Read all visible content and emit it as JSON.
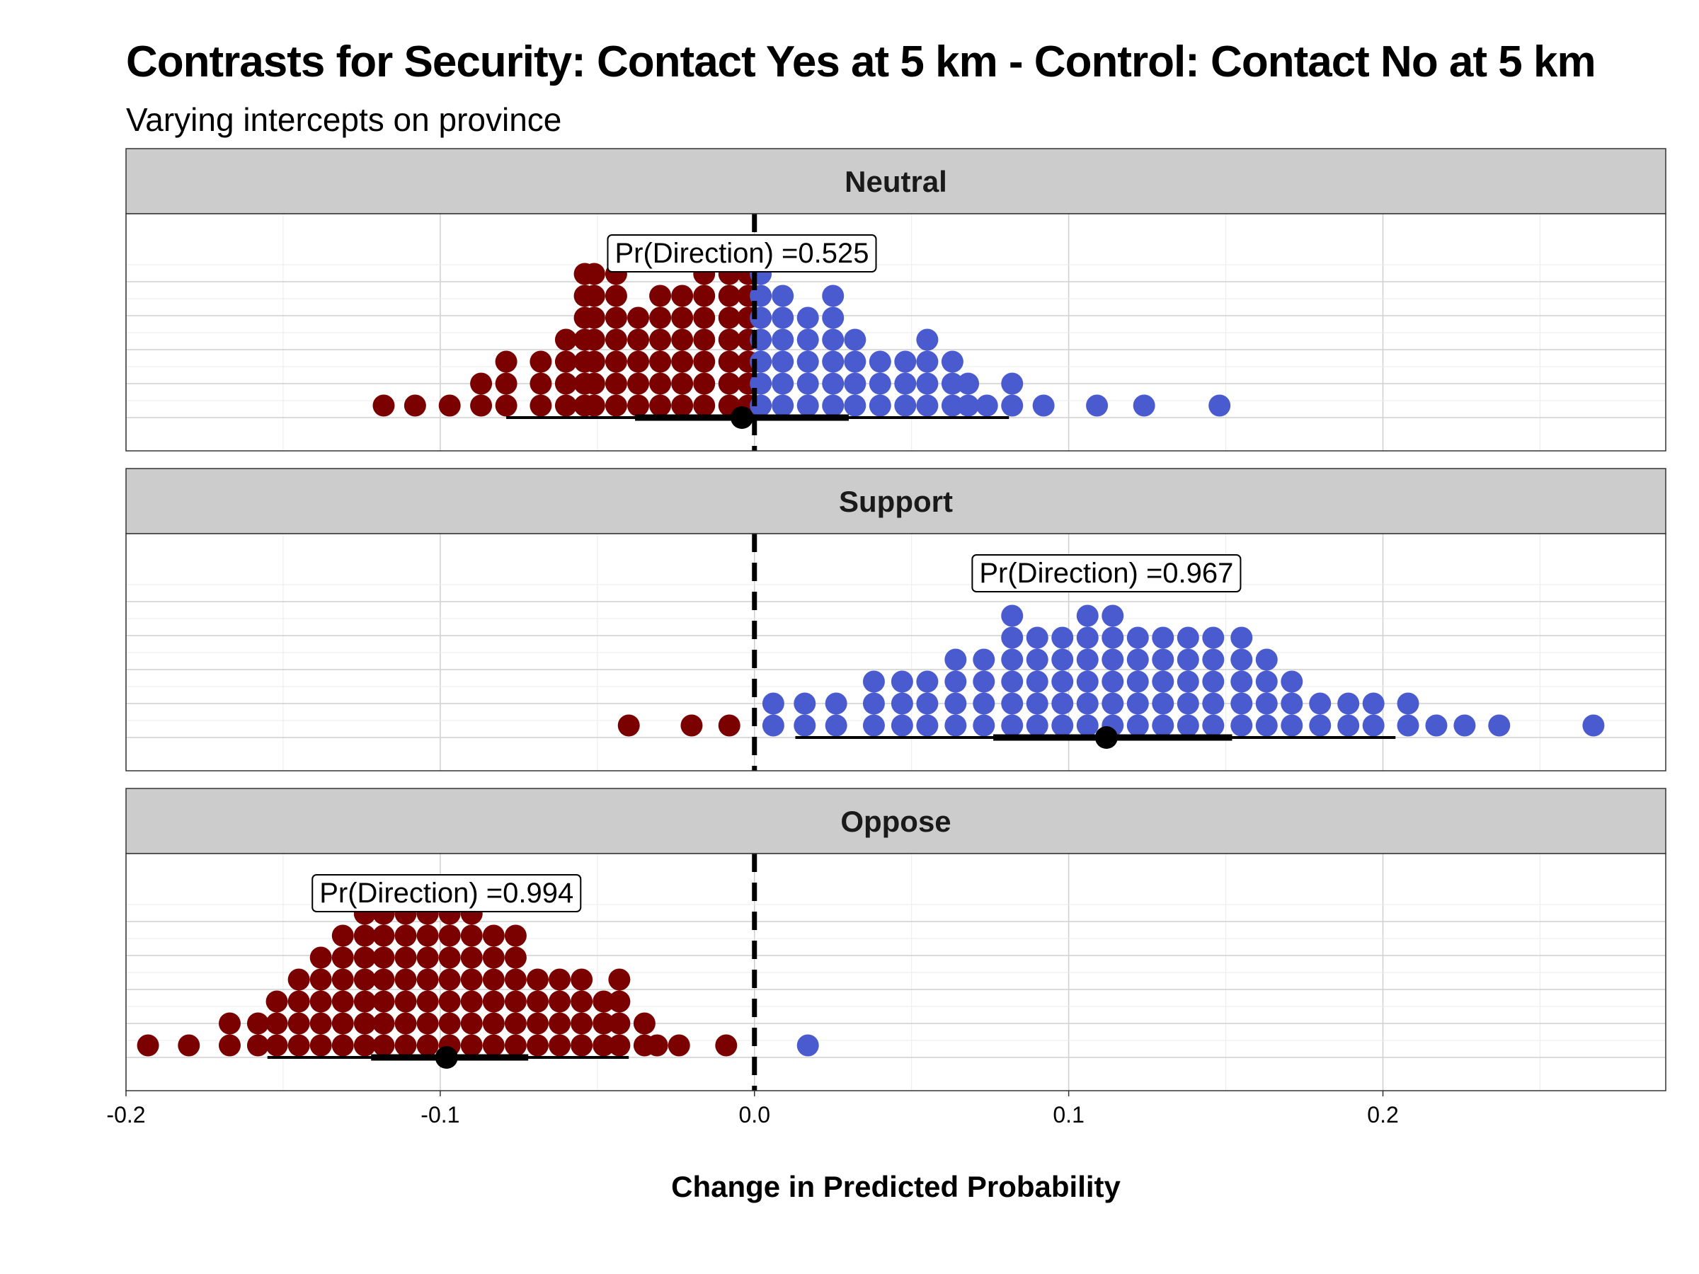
{
  "chart_data": {
    "type": "dotplot",
    "title": "Contrasts for Security: Contact Yes at 5 km - Control: Contact No at 5 km",
    "subtitle": "Varying intercepts on province",
    "xlabel": "Change in Predicted Probability",
    "xlim": [
      -0.2,
      0.29
    ],
    "xticks": [
      "-0.2",
      "-0.1",
      "0.0",
      "0.1",
      "0.2"
    ],
    "reference_line_x": 0.0,
    "grid": true,
    "colors": {
      "negative": "#7B0000",
      "positive": "#4A5BCF",
      "interval": "#000000",
      "strip": "#CCCCCC"
    },
    "panels": [
      {
        "label": "Neutral",
        "annotation": "Pr(Direction) =0.525",
        "median": -0.004,
        "interval_66": [
          -0.038,
          0.03
        ],
        "interval_95": [
          -0.079,
          0.081
        ],
        "dots_negative": [
          -0.118,
          -0.108,
          -0.097,
          -0.087,
          -0.087,
          -0.079,
          -0.079,
          -0.079,
          -0.068,
          -0.068,
          -0.068,
          -0.06,
          -0.06,
          -0.06,
          -0.06,
          -0.054,
          -0.054,
          -0.054,
          -0.054,
          -0.054,
          -0.054,
          -0.054,
          -0.051,
          -0.051,
          -0.051,
          -0.051,
          -0.051,
          -0.051,
          -0.051,
          -0.044,
          -0.044,
          -0.044,
          -0.044,
          -0.044,
          -0.044,
          -0.044,
          -0.037,
          -0.037,
          -0.037,
          -0.037,
          -0.037,
          -0.03,
          -0.03,
          -0.03,
          -0.03,
          -0.03,
          -0.03,
          -0.023,
          -0.023,
          -0.023,
          -0.023,
          -0.023,
          -0.023,
          -0.016,
          -0.016,
          -0.016,
          -0.016,
          -0.016,
          -0.016,
          -0.016,
          -0.008,
          -0.008,
          -0.008,
          -0.008,
          -0.008,
          -0.008,
          -0.008,
          -0.002,
          -0.002,
          -0.002,
          -0.002,
          -0.002,
          -0.002,
          -0.002
        ],
        "dots_positive": [
          0.002,
          0.002,
          0.002,
          0.002,
          0.002,
          0.002,
          0.002,
          0.009,
          0.009,
          0.009,
          0.009,
          0.009,
          0.009,
          0.017,
          0.017,
          0.017,
          0.017,
          0.017,
          0.025,
          0.025,
          0.025,
          0.025,
          0.025,
          0.025,
          0.032,
          0.032,
          0.032,
          0.032,
          0.04,
          0.04,
          0.04,
          0.048,
          0.048,
          0.048,
          0.055,
          0.055,
          0.055,
          0.055,
          0.063,
          0.063,
          0.063,
          0.068,
          0.068,
          0.074,
          0.082,
          0.082,
          0.092,
          0.109,
          0.124,
          0.148
        ]
      },
      {
        "label": "Support",
        "annotation": "Pr(Direction) =0.967",
        "median": 0.112,
        "interval_66": [
          0.076,
          0.152
        ],
        "interval_95": [
          0.013,
          0.204
        ],
        "dots_negative": [
          -0.04,
          -0.02,
          -0.008
        ],
        "dots_positive": [
          0.006,
          0.006,
          0.016,
          0.016,
          0.026,
          0.026,
          0.038,
          0.038,
          0.038,
          0.047,
          0.047,
          0.047,
          0.055,
          0.055,
          0.055,
          0.064,
          0.064,
          0.064,
          0.064,
          0.073,
          0.073,
          0.073,
          0.073,
          0.082,
          0.082,
          0.082,
          0.082,
          0.082,
          0.082,
          0.09,
          0.09,
          0.09,
          0.09,
          0.09,
          0.098,
          0.098,
          0.098,
          0.098,
          0.098,
          0.106,
          0.106,
          0.106,
          0.106,
          0.106,
          0.106,
          0.114,
          0.114,
          0.114,
          0.114,
          0.114,
          0.114,
          0.122,
          0.122,
          0.122,
          0.122,
          0.122,
          0.13,
          0.13,
          0.13,
          0.13,
          0.13,
          0.138,
          0.138,
          0.138,
          0.138,
          0.138,
          0.146,
          0.146,
          0.146,
          0.146,
          0.146,
          0.155,
          0.155,
          0.155,
          0.155,
          0.155,
          0.163,
          0.163,
          0.163,
          0.163,
          0.171,
          0.171,
          0.171,
          0.18,
          0.18,
          0.189,
          0.189,
          0.197,
          0.197,
          0.208,
          0.208,
          0.217,
          0.226,
          0.237,
          0.267
        ]
      },
      {
        "label": "Oppose",
        "annotation": "Pr(Direction) =0.994",
        "median": -0.098,
        "interval_66": [
          -0.122,
          -0.072
        ],
        "interval_95": [
          -0.155,
          -0.04
        ],
        "dots_negative": [
          -0.193,
          -0.18,
          -0.167,
          -0.167,
          -0.158,
          -0.158,
          -0.152,
          -0.152,
          -0.152,
          -0.145,
          -0.145,
          -0.145,
          -0.145,
          -0.138,
          -0.138,
          -0.138,
          -0.138,
          -0.138,
          -0.131,
          -0.131,
          -0.131,
          -0.131,
          -0.131,
          -0.131,
          -0.124,
          -0.124,
          -0.124,
          -0.124,
          -0.124,
          -0.124,
          -0.124,
          -0.118,
          -0.118,
          -0.118,
          -0.118,
          -0.118,
          -0.118,
          -0.118,
          -0.111,
          -0.111,
          -0.111,
          -0.111,
          -0.111,
          -0.111,
          -0.111,
          -0.111,
          -0.104,
          -0.104,
          -0.104,
          -0.104,
          -0.104,
          -0.104,
          -0.104,
          -0.104,
          -0.097,
          -0.097,
          -0.097,
          -0.097,
          -0.097,
          -0.097,
          -0.097,
          -0.097,
          -0.09,
          -0.09,
          -0.09,
          -0.09,
          -0.09,
          -0.09,
          -0.09,
          -0.083,
          -0.083,
          -0.083,
          -0.083,
          -0.083,
          -0.083,
          -0.076,
          -0.076,
          -0.076,
          -0.076,
          -0.076,
          -0.076,
          -0.069,
          -0.069,
          -0.069,
          -0.069,
          -0.062,
          -0.062,
          -0.062,
          -0.062,
          -0.055,
          -0.055,
          -0.055,
          -0.055,
          -0.048,
          -0.048,
          -0.048,
          -0.043,
          -0.043,
          -0.043,
          -0.043,
          -0.035,
          -0.035,
          -0.031,
          -0.024,
          -0.009
        ],
        "dots_positive": [
          0.017
        ]
      }
    ]
  }
}
